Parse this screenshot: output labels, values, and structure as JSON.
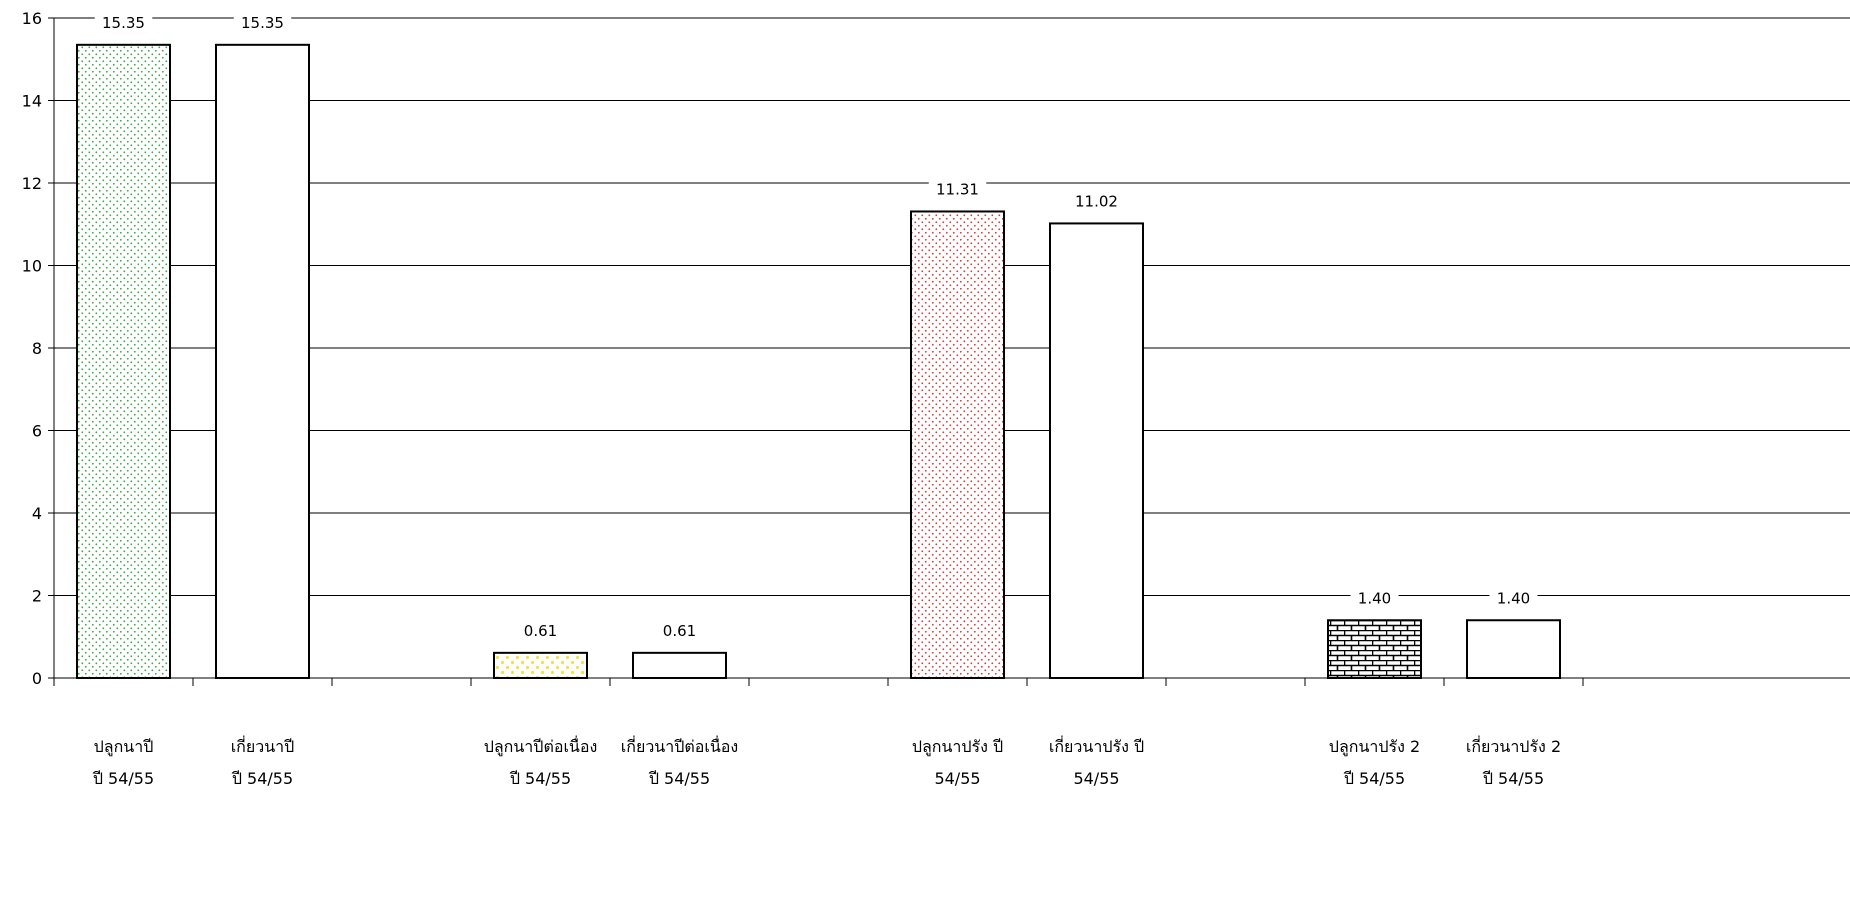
{
  "chart_data": {
    "type": "bar",
    "categories": [
      [
        "ปลูกนาปี",
        "ปี 54/55"
      ],
      [
        "เกี่ยวนาปี",
        "ปี 54/55"
      ],
      [
        "",
        ""
      ],
      [
        "ปลูกนาปีต่อเนื่อง",
        "ปี 54/55"
      ],
      [
        "เกี่ยวนาปีต่อเนื่อง",
        "ปี 54/55"
      ],
      [
        "",
        ""
      ],
      [
        "ปลูกนาปรัง ปี",
        "54/55"
      ],
      [
        "เกี่ยวนาปรัง ปี",
        "54/55"
      ],
      [
        "",
        ""
      ],
      [
        "ปลูกนาปรัง 2",
        "ปี 54/55"
      ],
      [
        "เกี่ยวนาปรัง 2",
        "ปี 54/55"
      ]
    ],
    "values": [
      15.35,
      15.35,
      null,
      0.61,
      0.61,
      null,
      11.31,
      11.02,
      null,
      1.4,
      1.4
    ],
    "data_labels": [
      "15.35",
      "15.35",
      "",
      "0.61",
      "0.61",
      "",
      "11.31",
      "11.02",
      "",
      "1.40",
      "1.40"
    ],
    "bar_styles": [
      "dots-green",
      "plain",
      "",
      "dots-yellow",
      "plain",
      "",
      "dots-red",
      "plain",
      "",
      "bricks",
      "plain"
    ],
    "ylim": [
      0,
      16
    ],
    "y_ticks": [
      "0",
      "2",
      "4",
      "6",
      "8",
      "10",
      "12",
      "14",
      "16"
    ],
    "grid": true,
    "colors": {
      "green_dots": "#3aa64a",
      "yellow_dots": "#f2e24a",
      "red_dots": "#d23a3a",
      "bricks": "#000000",
      "bar_outline": "#000000",
      "grid": "#000000"
    },
    "title": "",
    "xlabel": "",
    "ylabel": ""
  }
}
